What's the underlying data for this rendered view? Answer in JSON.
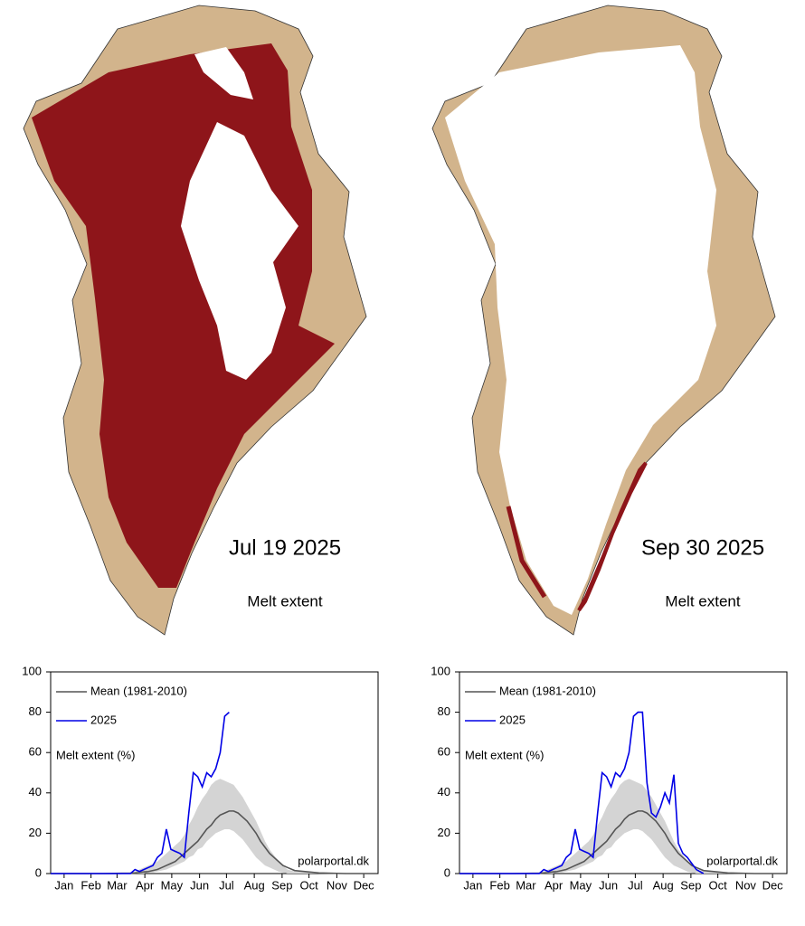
{
  "maps": [
    {
      "date": "Jul 19 2025",
      "label": "Melt extent"
    },
    {
      "date": "Sep 30 2025",
      "label": "Melt extent"
    }
  ],
  "chart_data": [
    {
      "type": "line",
      "ylabel": "Melt extent (%)",
      "annotation": "polarportal.dk",
      "x": [
        1,
        30,
        60,
        90,
        95,
        100,
        105,
        110,
        115,
        120,
        125,
        130,
        135,
        140,
        145,
        150,
        155,
        160,
        165,
        170,
        175,
        180,
        185,
        190,
        195,
        200,
        205,
        210,
        215,
        220,
        225,
        230,
        235,
        240,
        245,
        250,
        255,
        260,
        265,
        273,
        300,
        330,
        365
      ],
      "xlim": [
        1,
        366
      ],
      "xticks": [
        {
          "value": 16,
          "label": "Jan"
        },
        {
          "value": 46,
          "label": "Feb"
        },
        {
          "value": 75,
          "label": "Mar"
        },
        {
          "value": 106,
          "label": "Apr"
        },
        {
          "value": 136,
          "label": "May"
        },
        {
          "value": 167,
          "label": "Jun"
        },
        {
          "value": 197,
          "label": "Jul"
        },
        {
          "value": 228,
          "label": "Aug"
        },
        {
          "value": 259,
          "label": "Sep"
        },
        {
          "value": 289,
          "label": "Oct"
        },
        {
          "value": 320,
          "label": "Nov"
        },
        {
          "value": 350,
          "label": "Dec"
        }
      ],
      "ylim": [
        0,
        100
      ],
      "yticks": [
        0,
        20,
        40,
        60,
        80,
        100
      ],
      "band": {
        "color": "#d4d4d4",
        "low": [
          0,
          0,
          0,
          0,
          0,
          0,
          0,
          0.5,
          0.5,
          1,
          1.5,
          2,
          3,
          4,
          5,
          6,
          8,
          9,
          12,
          13,
          16,
          18,
          20,
          21,
          22,
          22,
          21,
          19,
          17,
          14,
          11,
          8,
          6,
          4,
          3,
          2,
          1,
          0.5,
          0,
          0,
          0,
          0,
          0
        ],
        "high": [
          0,
          0,
          0,
          0.5,
          1,
          2,
          3,
          4,
          5,
          6,
          8,
          10,
          12,
          14,
          16,
          19,
          24,
          28,
          33,
          37,
          40,
          44,
          46,
          47,
          46,
          45,
          44,
          41,
          38,
          34,
          30,
          26,
          21,
          16,
          12,
          9,
          6,
          4,
          2,
          1,
          0.5,
          0,
          0
        ]
      },
      "series": [
        {
          "name": "Mean (1981-2010)",
          "color": "#555555",
          "values": [
            0,
            0,
            0,
            0.2,
            0.3,
            0.5,
            0.8,
            1,
            1.5,
            2,
            3,
            4,
            5,
            6,
            8,
            10,
            12,
            14,
            16,
            19,
            22,
            24,
            27,
            29,
            30,
            31,
            31,
            30,
            28,
            26,
            23,
            20,
            16,
            13,
            10,
            8,
            6,
            4,
            3,
            1.5,
            0.3,
            0,
            0
          ]
        },
        {
          "name": "2025",
          "color": "#0000e6",
          "values": [
            0,
            0,
            0,
            0,
            2,
            1,
            2,
            3,
            4,
            8,
            10,
            22,
            12,
            11,
            10,
            8,
            30,
            50,
            48,
            43,
            50,
            48,
            52,
            60,
            78,
            80,
            null,
            null,
            null,
            null,
            null,
            null,
            null,
            null,
            null,
            null,
            null,
            null,
            null,
            null,
            null,
            null,
            null
          ]
        }
      ]
    },
    {
      "type": "line",
      "ylabel": "Melt extent (%)",
      "annotation": "polarportal.dk",
      "x": [
        1,
        30,
        60,
        90,
        95,
        100,
        105,
        110,
        115,
        120,
        125,
        130,
        135,
        140,
        145,
        150,
        155,
        160,
        165,
        170,
        175,
        180,
        185,
        190,
        195,
        200,
        205,
        210,
        215,
        220,
        225,
        230,
        235,
        240,
        245,
        250,
        255,
        260,
        265,
        273,
        300,
        330,
        365
      ],
      "xlim": [
        1,
        366
      ],
      "xticks": [
        {
          "value": 16,
          "label": "Jan"
        },
        {
          "value": 46,
          "label": "Feb"
        },
        {
          "value": 75,
          "label": "Mar"
        },
        {
          "value": 106,
          "label": "Apr"
        },
        {
          "value": 136,
          "label": "May"
        },
        {
          "value": 167,
          "label": "Jun"
        },
        {
          "value": 197,
          "label": "Jul"
        },
        {
          "value": 228,
          "label": "Aug"
        },
        {
          "value": 259,
          "label": "Sep"
        },
        {
          "value": 289,
          "label": "Oct"
        },
        {
          "value": 320,
          "label": "Nov"
        },
        {
          "value": 350,
          "label": "Dec"
        }
      ],
      "ylim": [
        0,
        100
      ],
      "yticks": [
        0,
        20,
        40,
        60,
        80,
        100
      ],
      "band": {
        "color": "#d4d4d4",
        "low": [
          0,
          0,
          0,
          0,
          0,
          0,
          0,
          0.5,
          0.5,
          1,
          1.5,
          2,
          3,
          4,
          5,
          6,
          8,
          9,
          12,
          13,
          16,
          18,
          20,
          21,
          22,
          22,
          21,
          19,
          17,
          14,
          11,
          8,
          6,
          4,
          3,
          2,
          1,
          0.5,
          0,
          0,
          0,
          0,
          0
        ],
        "high": [
          0,
          0,
          0,
          0.5,
          1,
          2,
          3,
          4,
          5,
          6,
          8,
          10,
          12,
          14,
          16,
          19,
          24,
          28,
          33,
          37,
          40,
          44,
          46,
          47,
          46,
          45,
          44,
          41,
          38,
          34,
          30,
          26,
          21,
          16,
          12,
          9,
          6,
          4,
          2,
          1,
          0.5,
          0,
          0
        ]
      },
      "series": [
        {
          "name": "Mean (1981-2010)",
          "color": "#555555",
          "values": [
            0,
            0,
            0,
            0.2,
            0.3,
            0.5,
            0.8,
            1,
            1.5,
            2,
            3,
            4,
            5,
            6,
            8,
            10,
            12,
            14,
            16,
            19,
            22,
            24,
            27,
            29,
            30,
            31,
            31,
            30,
            28,
            26,
            23,
            20,
            16,
            13,
            10,
            8,
            6,
            4,
            3,
            1.5,
            0.3,
            0,
            0
          ]
        },
        {
          "name": "2025",
          "color": "#0000e6",
          "values": [
            0,
            0,
            0,
            0,
            2,
            1,
            2,
            3,
            4,
            8,
            10,
            22,
            12,
            11,
            10,
            8,
            30,
            50,
            48,
            43,
            50,
            48,
            52,
            60,
            78,
            80,
            80,
            45,
            30,
            28,
            33,
            40,
            35,
            49,
            15,
            10,
            8,
            5,
            2,
            0,
            null,
            null,
            null
          ]
        }
      ]
    }
  ]
}
